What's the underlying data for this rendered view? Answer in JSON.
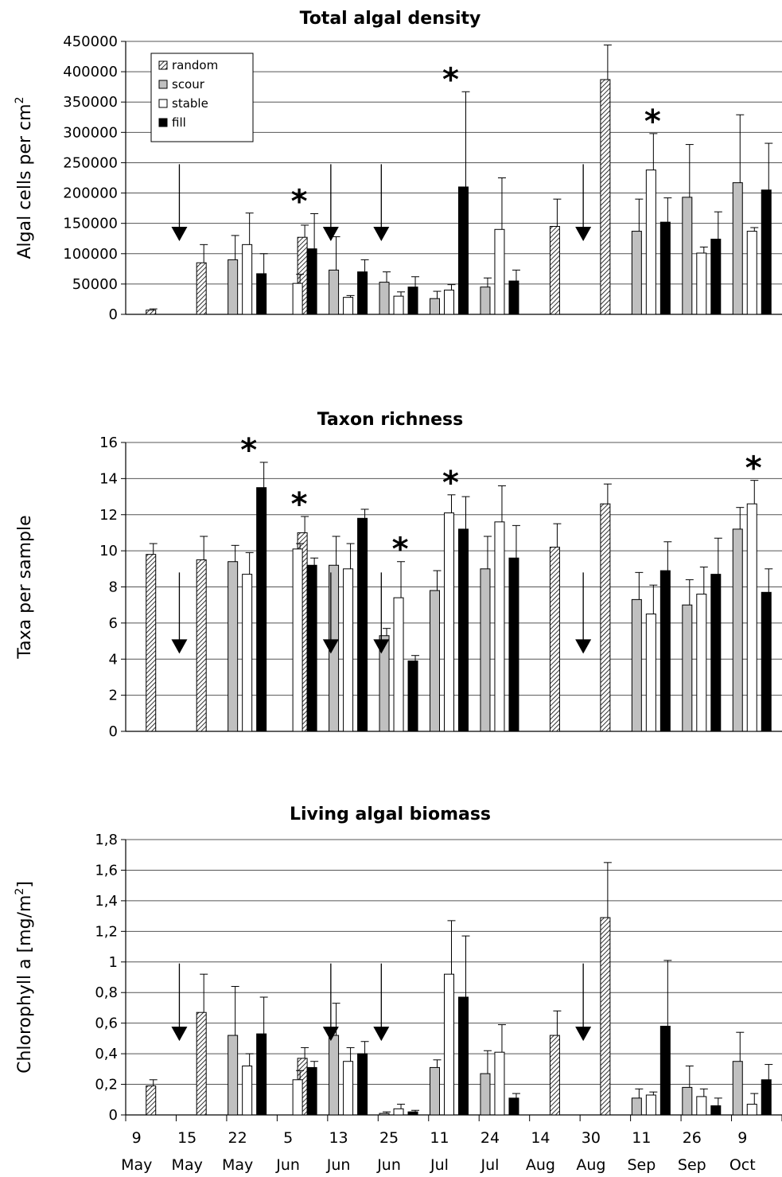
{
  "chart_data": [
    {
      "type": "bar",
      "title": "Total algal density",
      "ylabel": "Algal cells per cm",
      "ylabel_superscript": "2",
      "ylim": [
        0,
        450000
      ],
      "yticks": [
        "0",
        "50000",
        "100000",
        "150000",
        "200000",
        "250000",
        "300000",
        "350000",
        "400000",
        "450000"
      ],
      "legend_placement": "top-left",
      "categories": [
        "9 May",
        "15 May",
        "22 May",
        "5 Jun",
        "13 Jun",
        "25 Jun",
        "11 Jul",
        "24 Jul",
        "14 Aug",
        "30 Aug",
        "11 Sep",
        "26 Sep",
        "9 Oct"
      ],
      "series": [
        {
          "name": "random",
          "values": [
            7000,
            85000,
            null,
            127000,
            null,
            null,
            null,
            null,
            145000,
            387000,
            null,
            null,
            null
          ],
          "errors": [
            2000,
            30000,
            null,
            20000,
            null,
            null,
            null,
            null,
            45000,
            57000,
            null,
            null,
            null
          ]
        },
        {
          "name": "scour",
          "values": [
            null,
            null,
            90000,
            null,
            73000,
            53000,
            26000,
            45000,
            null,
            null,
            137000,
            193000,
            217000
          ],
          "errors": [
            null,
            null,
            40000,
            null,
            55000,
            17000,
            12000,
            15000,
            null,
            null,
            53000,
            87000,
            112000
          ]
        },
        {
          "name": "stable",
          "values": [
            null,
            null,
            115000,
            51000,
            28000,
            30000,
            40000,
            140000,
            null,
            null,
            238000,
            101000,
            137000
          ],
          "errors": [
            null,
            null,
            52000,
            15000,
            3000,
            7000,
            9000,
            85000,
            null,
            null,
            60000,
            10000,
            6000
          ]
        },
        {
          "name": "fill",
          "values": [
            null,
            null,
            67000,
            108000,
            70000,
            45000,
            210000,
            55000,
            null,
            null,
            152000,
            124000,
            205000
          ],
          "errors": [
            null,
            null,
            33000,
            58000,
            20000,
            17000,
            157000,
            18000,
            null,
            null,
            40000,
            45000,
            77000
          ]
        }
      ],
      "significance": [
        3,
        6,
        10
      ],
      "disturbance": [
        1,
        4,
        5,
        9
      ]
    },
    {
      "type": "bar",
      "title": "Taxon richness",
      "ylabel": "Taxa per sample",
      "ylim": [
        0,
        16
      ],
      "yticks": [
        "0",
        "2",
        "4",
        "6",
        "8",
        "10",
        "12",
        "14",
        "16"
      ],
      "categories": [
        "9 May",
        "15 May",
        "22 May",
        "5 Jun",
        "13 Jun",
        "25 Jun",
        "11 Jul",
        "24 Jul",
        "14 Aug",
        "30 Aug",
        "11 Sep",
        "26 Sep",
        "9 Oct"
      ],
      "series": [
        {
          "name": "random",
          "values": [
            9.8,
            9.5,
            null,
            11.0,
            null,
            null,
            null,
            null,
            10.2,
            12.6,
            null,
            null,
            null
          ],
          "errors": [
            0.6,
            1.3,
            null,
            0.9,
            null,
            null,
            null,
            null,
            1.3,
            1.1,
            null,
            null,
            null
          ]
        },
        {
          "name": "scour",
          "values": [
            null,
            null,
            9.4,
            null,
            9.2,
            5.3,
            7.8,
            9.0,
            null,
            null,
            7.3,
            7.0,
            11.2
          ]
        },
        {
          "name": "stable",
          "values": [
            null,
            null,
            8.7,
            10.1,
            9.0,
            7.4,
            12.1,
            11.6,
            null,
            null,
            6.5,
            7.6,
            12.6
          ]
        },
        {
          "name": "fill",
          "values": [
            null,
            null,
            13.5,
            9.2,
            11.8,
            3.9,
            11.2,
            9.6,
            null,
            null,
            8.9,
            8.7,
            7.7
          ]
        }
      ],
      "errors": {
        "scour": [
          null,
          null,
          0.9,
          null,
          1.6,
          0.4,
          1.1,
          1.8,
          null,
          null,
          1.5,
          1.4,
          1.2
        ],
        "stable": [
          null,
          null,
          1.2,
          0.3,
          1.4,
          2.0,
          1.0,
          2.0,
          null,
          null,
          1.6,
          1.5,
          1.3
        ],
        "fill": [
          null,
          null,
          1.4,
          0.4,
          0.5,
          0.3,
          1.8,
          1.8,
          null,
          null,
          1.6,
          2.0,
          1.3
        ]
      },
      "significance": [
        2,
        3,
        5,
        6,
        12
      ],
      "disturbance": [
        1,
        4,
        5,
        9
      ]
    },
    {
      "type": "bar",
      "title": "Living algal biomass",
      "ylabel": "Chlorophyll a [mg/m",
      "ylabel_superscript": "2",
      "ylabel_suffix": "]",
      "ylim": [
        0,
        1.8
      ],
      "yticks": [
        "0",
        "0,2",
        "0,4",
        "0,6",
        "0,8",
        "1",
        "1,2",
        "1,4",
        "1,6",
        "1,8"
      ],
      "categories": [
        "9 May",
        "15 May",
        "22 May",
        "5 Jun",
        "13 Jun",
        "25 Jun",
        "11 Jul",
        "24 Jul",
        "14 Aug",
        "30 Aug",
        "11 Sep",
        "26 Sep",
        "9 Oct"
      ],
      "series": [
        {
          "name": "random",
          "values": [
            0.19,
            0.67,
            null,
            0.37,
            null,
            null,
            null,
            null,
            0.52,
            1.29,
            null,
            null,
            null
          ]
        },
        {
          "name": "scour",
          "values": [
            null,
            null,
            0.52,
            null,
            0.52,
            0.01,
            0.31,
            0.27,
            null,
            null,
            0.11,
            0.18,
            0.35
          ]
        },
        {
          "name": "stable",
          "values": [
            null,
            null,
            0.32,
            0.23,
            0.35,
            0.04,
            0.92,
            0.41,
            null,
            null,
            0.13,
            0.12,
            0.07
          ]
        },
        {
          "name": "fill",
          "values": [
            null,
            null,
            0.53,
            0.31,
            0.4,
            0.02,
            0.77,
            0.11,
            null,
            null,
            0.58,
            0.06,
            0.23
          ]
        }
      ],
      "errors": {
        "random": [
          0.04,
          0.25,
          null,
          0.07,
          null,
          null,
          null,
          null,
          0.16,
          0.36,
          null,
          null,
          null
        ],
        "scour": [
          null,
          null,
          0.32,
          null,
          0.21,
          0.01,
          0.05,
          0.15,
          null,
          null,
          0.06,
          0.14,
          0.19
        ],
        "stable": [
          null,
          null,
          0.08,
          0.06,
          0.09,
          0.03,
          0.35,
          0.18,
          null,
          null,
          0.02,
          0.05,
          0.07
        ],
        "fill": [
          null,
          null,
          0.24,
          0.04,
          0.08,
          0.01,
          0.4,
          0.03,
          null,
          null,
          0.43,
          0.05,
          0.1
        ]
      },
      "significance": [],
      "disturbance": [
        1,
        4,
        5,
        9
      ]
    }
  ],
  "x_axis": {
    "days": [
      "9",
      "15",
      "22",
      "5",
      "13",
      "25",
      "11",
      "24",
      "14",
      "30",
      "11",
      "26",
      "9"
    ],
    "months": [
      "May",
      "May",
      "May",
      "Jun",
      "Jun",
      "Jun",
      "Jul",
      "Jul",
      "Aug",
      "Aug",
      "Sep",
      "Sep",
      "Oct"
    ]
  },
  "legend": {
    "items": [
      "random",
      "scour",
      "stable",
      "fill"
    ]
  },
  "colors": {
    "scour": "#c0c0c0",
    "stable": "#ffffff",
    "fill": "#000000",
    "random_pattern": "diagonal-hatch"
  },
  "significance_marker": "*"
}
